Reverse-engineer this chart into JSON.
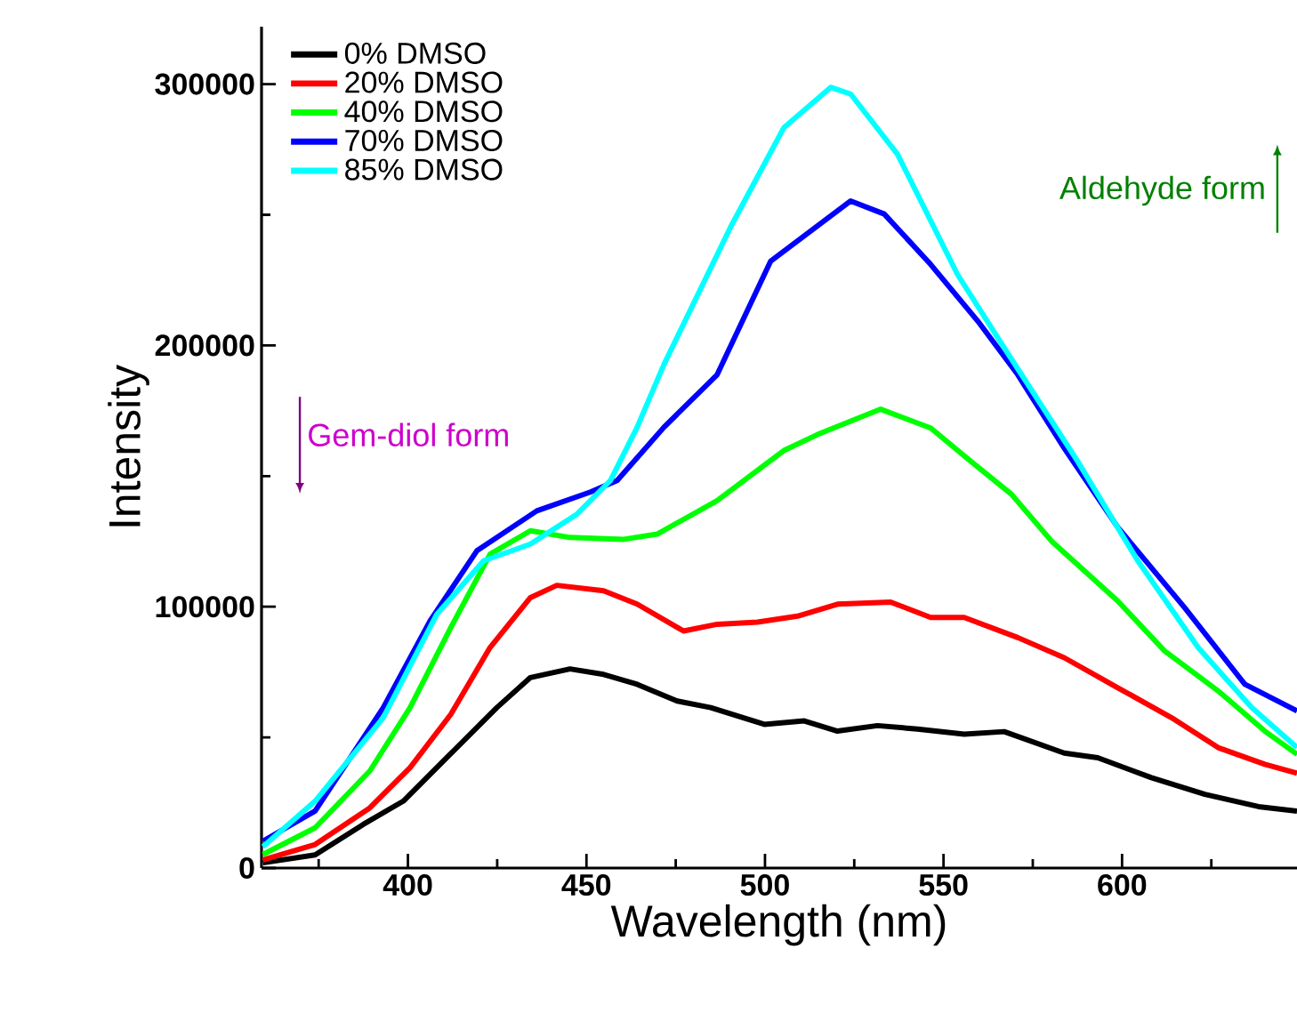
{
  "chart_data": {
    "type": "line",
    "xlabel": "Wavelength (nm)",
    "ylabel": "Intensity",
    "xlim": [
      359,
      649
    ],
    "ylim": [
      0,
      322000
    ],
    "xticks": [
      {
        "value": 375,
        "label": null
      },
      400,
      {
        "value": 425,
        "label": null
      },
      450,
      {
        "value": 475,
        "label": null
      },
      500,
      {
        "value": 525,
        "label": null
      },
      550,
      {
        "value": 575,
        "label": null
      },
      600,
      {
        "value": 625,
        "label": null
      }
    ],
    "yticks": [
      0,
      {
        "value": 50000,
        "label": null
      },
      100000,
      {
        "value": 150000,
        "label": null
      },
      200000,
      {
        "value": 250000,
        "label": null
      },
      300000
    ],
    "grid": false,
    "legend": "top left",
    "marker": "none",
    "line_style": "solid",
    "annotations": [
      "Gem-diol form",
      "Aldehyde form"
    ],
    "series": [
      {
        "name": "0% DMSO",
        "color": "#000000",
        "x": [
          359.4,
          374,
          387.5,
          398.7,
          411.8,
          424.9,
          434.3,
          445.4,
          454.8,
          464.2,
          475.4,
          484.8,
          499.8,
          511,
          520.3,
          531.5,
          542.7,
          555.8,
          567,
          583.8,
          593.2,
          608.2,
          623.2,
          638.2,
          649
        ],
        "values": [
          2000,
          5000,
          16700,
          25600,
          43500,
          61400,
          72900,
          76200,
          74100,
          70300,
          63900,
          61400,
          55000,
          56300,
          52400,
          54500,
          53200,
          51200,
          52200,
          44000,
          42200,
          34600,
          28200,
          23500,
          21800
        ]
      },
      {
        "name": "20% DMSO",
        "color": "#ff0000",
        "x": [
          359.4,
          374,
          389.3,
          400.6,
          412,
          423,
          434.3,
          441.7,
          454.8,
          464.2,
          477.2,
          486.6,
          497.9,
          509.1,
          520.3,
          535.2,
          546.4,
          555.8,
          570.8,
          583.8,
          598.8,
          613.8,
          626.9,
          640,
          649
        ],
        "values": [
          3100,
          9000,
          23000,
          38400,
          58800,
          84400,
          103500,
          108200,
          106100,
          101000,
          90700,
          93300,
          94100,
          96400,
          101000,
          101800,
          95900,
          95900,
          88200,
          80500,
          69000,
          57600,
          46100,
          39700,
          36300
        ]
      },
      {
        "name": "40% DMSO",
        "color": "#00ff00",
        "x": [
          359.4,
          374,
          389.3,
          400.6,
          412,
          423,
          434.3,
          445.4,
          460.5,
          469.8,
          486.6,
          505.3,
          514.7,
          532.4,
          546.4,
          557.7,
          569,
          580.2,
          598.8,
          611.9,
          626.9,
          640,
          649
        ],
        "values": [
          5200,
          15400,
          37100,
          61400,
          92000,
          120100,
          129100,
          126500,
          125800,
          127800,
          140600,
          159800,
          165900,
          175600,
          168400,
          155600,
          143100,
          125200,
          102200,
          83100,
          67800,
          52400,
          43500
        ]
      },
      {
        "name": "70% DMSO",
        "color": "#0000ff",
        "x": [
          359.4,
          374,
          393.1,
          406.2,
          419.3,
          436.1,
          451.1,
          458.6,
          471.7,
          486.6,
          501.6,
          524,
          533.4,
          546.4,
          559.6,
          570.8,
          583.8,
          598.8,
          617.5,
          634.4,
          649
        ],
        "values": [
          10300,
          21800,
          61400,
          94600,
          121400,
          136700,
          143900,
          148300,
          168700,
          188800,
          232300,
          255300,
          250300,
          231000,
          209300,
          188800,
          160700,
          130400,
          99700,
          70300,
          60100
        ]
      },
      {
        "name": "85% DMSO",
        "color": "#00ffff",
        "x": [
          359.4,
          374,
          393.1,
          408.1,
          421.2,
          434.3,
          447.4,
          456.7,
          464.2,
          471.7,
          490.4,
          505.3,
          518.4,
          524,
          537.1,
          553.9,
          567,
          587.6,
          604.4,
          621.3,
          636.3,
          649
        ],
        "values": [
          8200,
          25600,
          57600,
          97100,
          117600,
          124000,
          135500,
          148300,
          168700,
          192700,
          245400,
          283400,
          298800,
          296200,
          273200,
          227200,
          199100,
          155600,
          117600,
          84400,
          61400,
          46100
        ]
      }
    ]
  }
}
